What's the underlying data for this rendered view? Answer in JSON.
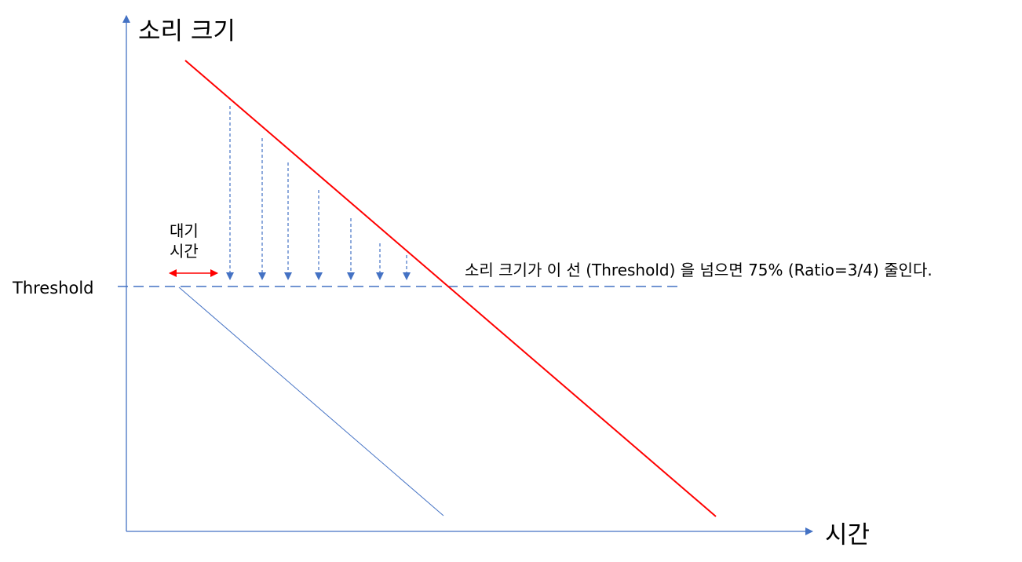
{
  "labels": {
    "y_axis": "소리 크기",
    "x_axis": "시간",
    "threshold": "Threshold",
    "delay_line1": "대기",
    "delay_line2": "시간",
    "note": "소리 크기가 이 선 (Threshold) 을 넘으면 75% (Ratio=3/4) 줄인다."
  },
  "colors": {
    "axis": "#4472c4",
    "input_line": "#ff0000",
    "output_line": "#4472c4",
    "threshold_line": "#4472c4",
    "reduction_arrows": "#4472c4",
    "delay_arrow": "#ff0000"
  },
  "icons": [
    "arrow-down-icon",
    "double-arrow-icon"
  ]
}
